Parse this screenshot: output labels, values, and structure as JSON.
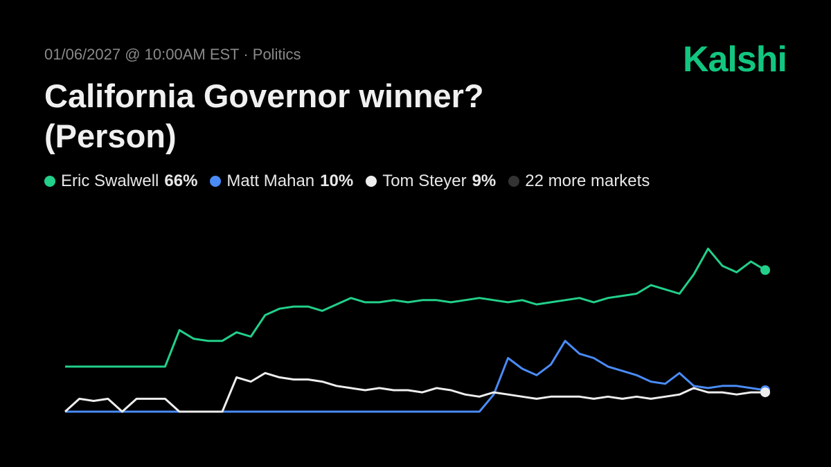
{
  "chart_data": {
    "type": "line",
    "subtitle": "01/06/2027 @ 10:00AM EST · Politics",
    "brand": "Kalshi",
    "title": "California Governor winner? (Person)",
    "ylim": [
      0,
      100
    ],
    "series": [
      {
        "name": "Eric Swalwell",
        "color": "#22d08a",
        "value_label": "66%",
        "values": [
          21,
          21,
          21,
          21,
          21,
          21,
          21,
          21,
          38,
          34,
          33,
          33,
          37,
          35,
          45,
          48,
          49,
          49,
          47,
          50,
          53,
          51,
          51,
          52,
          51,
          52,
          52,
          51,
          52,
          53,
          52,
          51,
          52,
          50,
          51,
          52,
          53,
          51,
          53,
          54,
          55,
          59,
          57,
          55,
          64,
          76,
          68,
          65,
          70,
          66
        ]
      },
      {
        "name": "Matt Mahan",
        "color": "#4a8cf7",
        "value_label": "10%",
        "values": [
          0,
          0,
          0,
          0,
          0,
          0,
          0,
          0,
          0,
          0,
          0,
          0,
          0,
          0,
          0,
          0,
          0,
          0,
          0,
          0,
          0,
          0,
          0,
          0,
          0,
          0,
          0,
          0,
          0,
          0,
          8,
          25,
          20,
          17,
          22,
          33,
          27,
          25,
          21,
          19,
          17,
          14,
          13,
          18,
          12,
          11,
          12,
          12,
          11,
          10
        ]
      },
      {
        "name": "Tom Steyer",
        "color": "#eeeeee",
        "value_label": "9%",
        "values": [
          0,
          6,
          5,
          6,
          0,
          6,
          6,
          6,
          0,
          0,
          0,
          0,
          16,
          14,
          18,
          16,
          15,
          15,
          14,
          12,
          11,
          10,
          11,
          10,
          10,
          9,
          11,
          10,
          8,
          7,
          9,
          8,
          7,
          6,
          7,
          7,
          7,
          6,
          7,
          6,
          7,
          6,
          7,
          8,
          11,
          9,
          9,
          8,
          9,
          9
        ]
      }
    ],
    "other": {
      "label": "22 more markets",
      "color": "#333333"
    }
  }
}
